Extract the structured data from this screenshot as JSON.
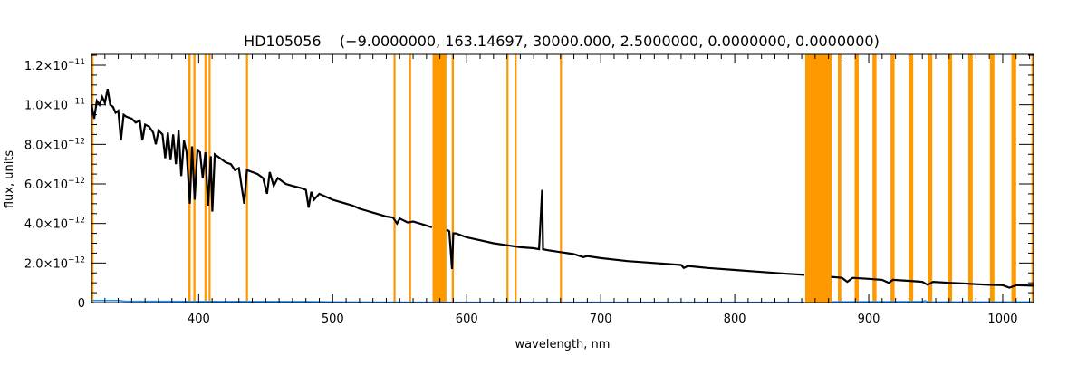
{
  "chart_data": {
    "type": "line",
    "title": "HD105056    (−9.0000000, 163.14697, 30000.000, 2.5000000, 0.0000000, 0.0000000)",
    "xlabel": "wavelength, nm",
    "ylabel": "flux, units",
    "xlim": [
      320,
      1023
    ],
    "ylim": [
      0,
      12.55
    ],
    "y_unit_multiplier": 1e-12,
    "x_ticks": [
      {
        "value": 400,
        "label": "400"
      },
      {
        "value": 500,
        "label": "500"
      },
      {
        "value": 600,
        "label": "600"
      },
      {
        "value": 700,
        "label": "700"
      },
      {
        "value": 800,
        "label": "800"
      },
      {
        "value": 900,
        "label": "900"
      },
      {
        "value": 1000,
        "label": "1000"
      }
    ],
    "y_ticks": [
      {
        "value": 0,
        "mantissa": "0",
        "exponent": ""
      },
      {
        "value": 2,
        "mantissa": "2.0×10",
        "exponent": "−12"
      },
      {
        "value": 4,
        "mantissa": "4.0×10",
        "exponent": "−12"
      },
      {
        "value": 6,
        "mantissa": "6.0×10",
        "exponent": "−12"
      },
      {
        "value": 8,
        "mantissa": "8.0×10",
        "exponent": "−12"
      },
      {
        "value": 10,
        "mantissa": "1.0×10",
        "exponent": "−11"
      },
      {
        "value": 12,
        "mantissa": "1.2×10",
        "exponent": "−11"
      }
    ],
    "masked_bands": [
      [
        320,
        321.5
      ],
      [
        392.2,
        394.0
      ],
      [
        396.0,
        397.6
      ],
      [
        404.3,
        405.8
      ],
      [
        407.4,
        408.9
      ],
      [
        435.3,
        436.8
      ],
      [
        545.4,
        546.9
      ],
      [
        557.0,
        558.5
      ],
      [
        574.5,
        584.9
      ],
      [
        588.8,
        590.4
      ],
      [
        629.7,
        631.2
      ],
      [
        635.8,
        637.3
      ],
      [
        669.6,
        671.1
      ],
      [
        852.6,
        872.4
      ],
      [
        877.0,
        879.5
      ],
      [
        889.5,
        892.5
      ],
      [
        902.8,
        905.8
      ],
      [
        916.3,
        919.3
      ],
      [
        930.0,
        933.2
      ],
      [
        944.2,
        947.4
      ],
      [
        959.0,
        962.2
      ],
      [
        974.3,
        977.6
      ],
      [
        990.5,
        993.8
      ],
      [
        1006.5,
        1010.0
      ],
      [
        1021.5,
        1023
      ]
    ],
    "colors": {
      "spectrum": "#000000",
      "error": "#1e90ff",
      "mask": "#ff9900"
    },
    "series": [
      {
        "name": "flux",
        "segments": [
          [
            [
              320,
              10.0
            ],
            [
              322,
              9.3
            ],
            [
              324,
              10.2
            ],
            [
              326,
              10.0
            ],
            [
              328,
              10.4
            ],
            [
              330,
              10.1
            ],
            [
              332,
              10.8
            ],
            [
              334,
              10.0
            ],
            [
              336,
              9.9
            ],
            [
              338,
              9.6
            ],
            [
              340,
              9.7
            ],
            [
              342,
              8.2
            ],
            [
              344,
              9.5
            ],
            [
              346,
              9.4
            ],
            [
              350,
              9.3
            ],
            [
              353,
              9.1
            ],
            [
              356,
              9.2
            ],
            [
              358,
              8.2
            ],
            [
              360,
              9.0
            ],
            [
              363,
              8.9
            ],
            [
              366,
              8.6
            ],
            [
              368,
              8.0
            ],
            [
              370,
              8.7
            ],
            [
              373,
              8.5
            ],
            [
              375,
              7.3
            ],
            [
              377,
              8.6
            ],
            [
              379,
              7.2
            ],
            [
              381,
              8.5
            ],
            [
              383,
              7.0
            ],
            [
              385,
              8.7
            ],
            [
              387,
              6.4
            ],
            [
              389,
              8.2
            ],
            [
              391,
              7.6
            ],
            [
              393.4,
              5.0
            ],
            [
              395,
              7.9
            ],
            [
              397,
              5.2
            ],
            [
              399,
              7.7
            ],
            [
              401,
              7.6
            ],
            [
              403,
              6.3
            ],
            [
              405,
              7.6
            ],
            [
              407,
              4.9
            ],
            [
              409,
              7.4
            ],
            [
              410.2,
              4.6
            ],
            [
              412,
              7.5
            ],
            [
              416,
              7.3
            ],
            [
              420,
              7.1
            ],
            [
              424,
              7.0
            ],
            [
              427,
              6.7
            ],
            [
              430,
              6.8
            ],
            [
              434,
              5.0
            ],
            [
              436,
              6.7
            ],
            [
              440,
              6.6
            ],
            [
              444,
              6.5
            ],
            [
              448,
              6.3
            ],
            [
              451,
              5.5
            ],
            [
              453,
              6.6
            ],
            [
              456,
              5.9
            ],
            [
              459,
              6.3
            ],
            [
              465,
              6.0
            ],
            [
              470,
              5.9
            ],
            [
              476,
              5.8
            ],
            [
              480,
              5.7
            ],
            [
              482,
              4.8
            ],
            [
              484,
              5.6
            ],
            [
              486,
              5.2
            ],
            [
              490,
              5.5
            ],
            [
              495,
              5.35
            ],
            [
              500,
              5.2
            ],
            [
              505,
              5.1
            ],
            [
              510,
              5.0
            ],
            [
              515,
              4.9
            ],
            [
              520,
              4.75
            ],
            [
              525,
              4.65
            ],
            [
              530,
              4.55
            ],
            [
              535,
              4.45
            ],
            [
              540,
              4.35
            ],
            [
              545,
              4.3
            ],
            [
              548,
              4.0
            ],
            [
              550,
              4.25
            ],
            [
              556,
              4.05
            ],
            [
              560,
              4.1
            ],
            [
              565,
              4.0
            ],
            [
              570,
              3.9
            ],
            [
              574,
              3.8
            ]
          ],
          [
            [
              585,
              3.7
            ],
            [
              587,
              3.6
            ],
            [
              589,
              1.7
            ],
            [
              590,
              3.5
            ],
            [
              592,
              3.5
            ],
            [
              600,
              3.3
            ],
            [
              610,
              3.15
            ],
            [
              620,
              3.0
            ],
            [
              630,
              2.9
            ],
            [
              640,
              2.8
            ],
            [
              650,
              2.75
            ],
            [
              654,
              2.7
            ],
            [
              655.5,
              4.6
            ],
            [
              656.3,
              5.7
            ],
            [
              657,
              2.7
            ],
            [
              660,
              2.65
            ],
            [
              670,
              2.55
            ],
            [
              680,
              2.45
            ],
            [
              687,
              2.3
            ],
            [
              690,
              2.35
            ],
            [
              700,
              2.25
            ],
            [
              720,
              2.1
            ],
            [
              740,
              2.0
            ],
            [
              760,
              1.9
            ],
            [
              762,
              1.75
            ],
            [
              765,
              1.85
            ],
            [
              780,
              1.75
            ],
            [
              800,
              1.65
            ],
            [
              820,
              1.55
            ],
            [
              840,
              1.45
            ],
            [
              852,
              1.4
            ]
          ],
          [
            [
              872,
              1.3
            ],
            [
              880,
              1.25
            ],
            [
              884,
              1.05
            ],
            [
              888,
              1.25
            ],
            [
              900,
              1.2
            ],
            [
              910,
              1.15
            ],
            [
              915,
              1.0
            ],
            [
              918,
              1.15
            ],
            [
              930,
              1.1
            ],
            [
              940,
              1.05
            ],
            [
              944,
              0.9
            ],
            [
              948,
              1.05
            ],
            [
              960,
              1.0
            ],
            [
              970,
              0.97
            ],
            [
              980,
              0.93
            ],
            [
              990,
              0.9
            ],
            [
              1000,
              0.88
            ],
            [
              1005,
              0.75
            ],
            [
              1010,
              0.88
            ],
            [
              1023,
              0.85
            ]
          ]
        ]
      },
      {
        "name": "error",
        "segments": [
          [
            [
              320,
              0.1
            ],
            [
              340,
              0.1
            ],
            [
              345,
              0.07
            ],
            [
              400,
              0.06
            ],
            [
              480,
              0.05
            ],
            [
              500,
              0.03
            ],
            [
              600,
              0.02
            ],
            [
              852,
              0.02
            ]
          ],
          [
            [
              872,
              0.04
            ],
            [
              940,
              0.05
            ],
            [
              942,
              0.09
            ],
            [
              944,
              0.04
            ],
            [
              1023,
              0.03
            ]
          ]
        ]
      }
    ]
  }
}
